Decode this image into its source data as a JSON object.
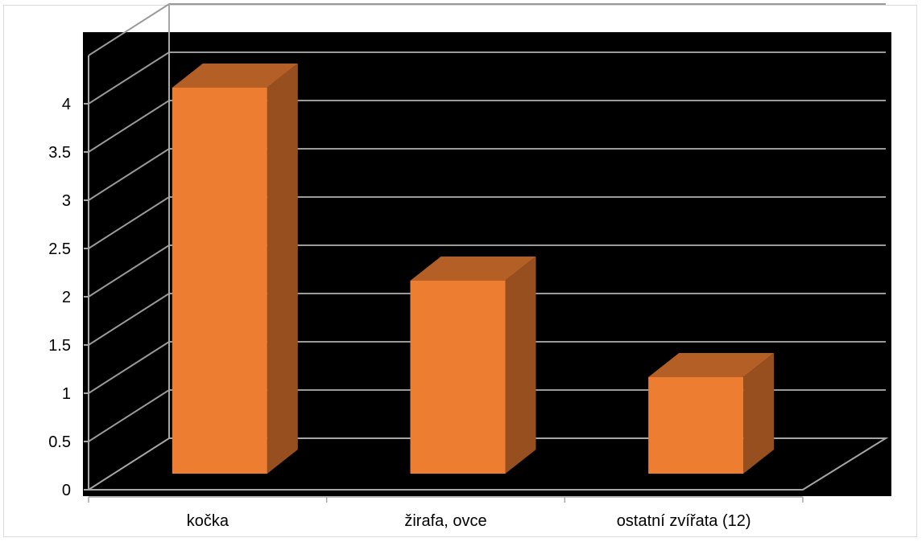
{
  "chart_data": {
    "type": "bar",
    "style": "3d-column",
    "categories": [
      "kočka",
      "žirafa, ovce",
      "ostatní zvířata (12)"
    ],
    "values": [
      4,
      2,
      1
    ],
    "ylim": [
      0,
      4.5
    ],
    "yticks": [
      "0",
      "0.5",
      "1",
      "1.5",
      "2",
      "2.5",
      "3",
      "3.5",
      "4"
    ],
    "title": "",
    "xlabel": "",
    "ylabel": "",
    "grid": true,
    "legend": "none"
  },
  "colors": {
    "plot_background": "#000000",
    "bar_front": "#ed7d31",
    "bar_top": "#b45f25",
    "bar_side": "#984f1f",
    "gridline": "#9a9a9a",
    "axis": "#a6a6a6"
  }
}
